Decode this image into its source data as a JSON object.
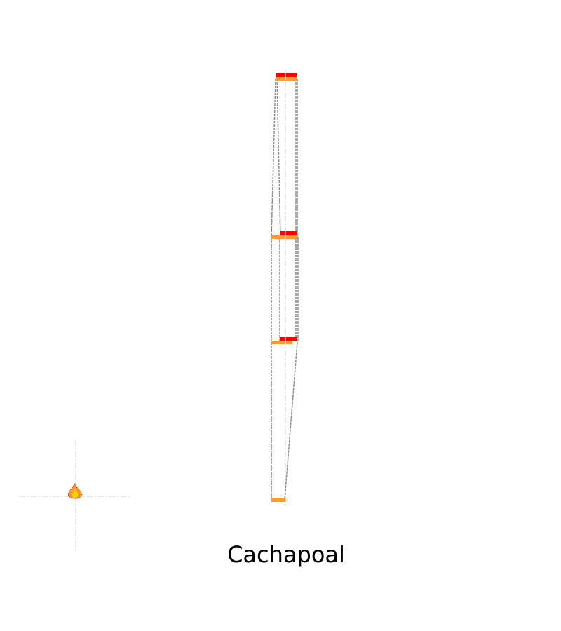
{
  "title": "Cachapoal",
  "colors": {
    "background": "#ffffff",
    "outline": "#8c8c8c",
    "guide": "#d4d4d4",
    "accent_red": "#ff0000",
    "accent_orange": "#ff9933",
    "flame_yellow": "#ffd200"
  },
  "icons": {
    "marker": "fire-icon"
  }
}
